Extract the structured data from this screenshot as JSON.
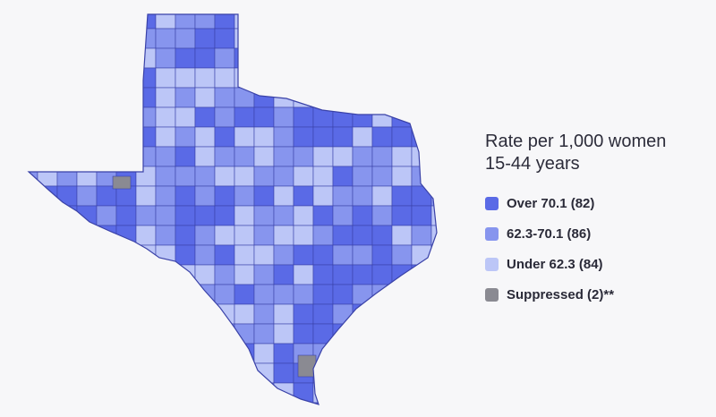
{
  "legend": {
    "title_line1": "Rate per 1,000 women",
    "title_line2": "15-44 years",
    "items": [
      {
        "label": "Over 70.1 (82)",
        "color": "#5a6ae6"
      },
      {
        "label": "62.3-70.1 (86)",
        "color": "#8795ee"
      },
      {
        "label": "Under 62.3 (84)",
        "color": "#bcc6f7"
      },
      {
        "label": "Suppressed (2)**",
        "color": "#8a8a92"
      }
    ]
  },
  "map": {
    "region": "Texas",
    "outline_color": "#3a42a8",
    "bins": [
      "Over 70.1",
      "62.3-70.1",
      "Under 62.3",
      "Suppressed"
    ]
  }
}
